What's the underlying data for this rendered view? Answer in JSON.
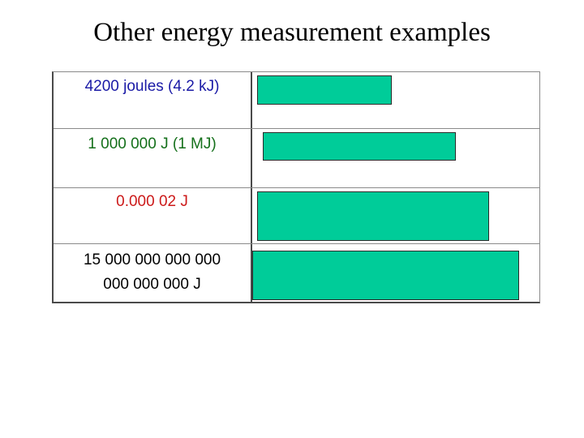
{
  "slide": {
    "title": "Other energy measurement examples"
  },
  "rows": [
    {
      "label_lines": [
        "4200 joules   (4.2 kJ)"
      ],
      "label_color": "#1a1aa6"
    },
    {
      "label_lines": [
        "1 000 000 J   (1 MJ)"
      ],
      "label_color": "#15701b"
    },
    {
      "label_lines": [
        "0.000 02 J"
      ],
      "label_color": "#cc1a1a"
    },
    {
      "label_lines": [
        "15 000 000 000 000",
        "000 000 000 J"
      ],
      "label_color": "#000000"
    }
  ],
  "colors": {
    "bar_fill": "#00cc99",
    "grid_line": "#4a4a4a"
  }
}
